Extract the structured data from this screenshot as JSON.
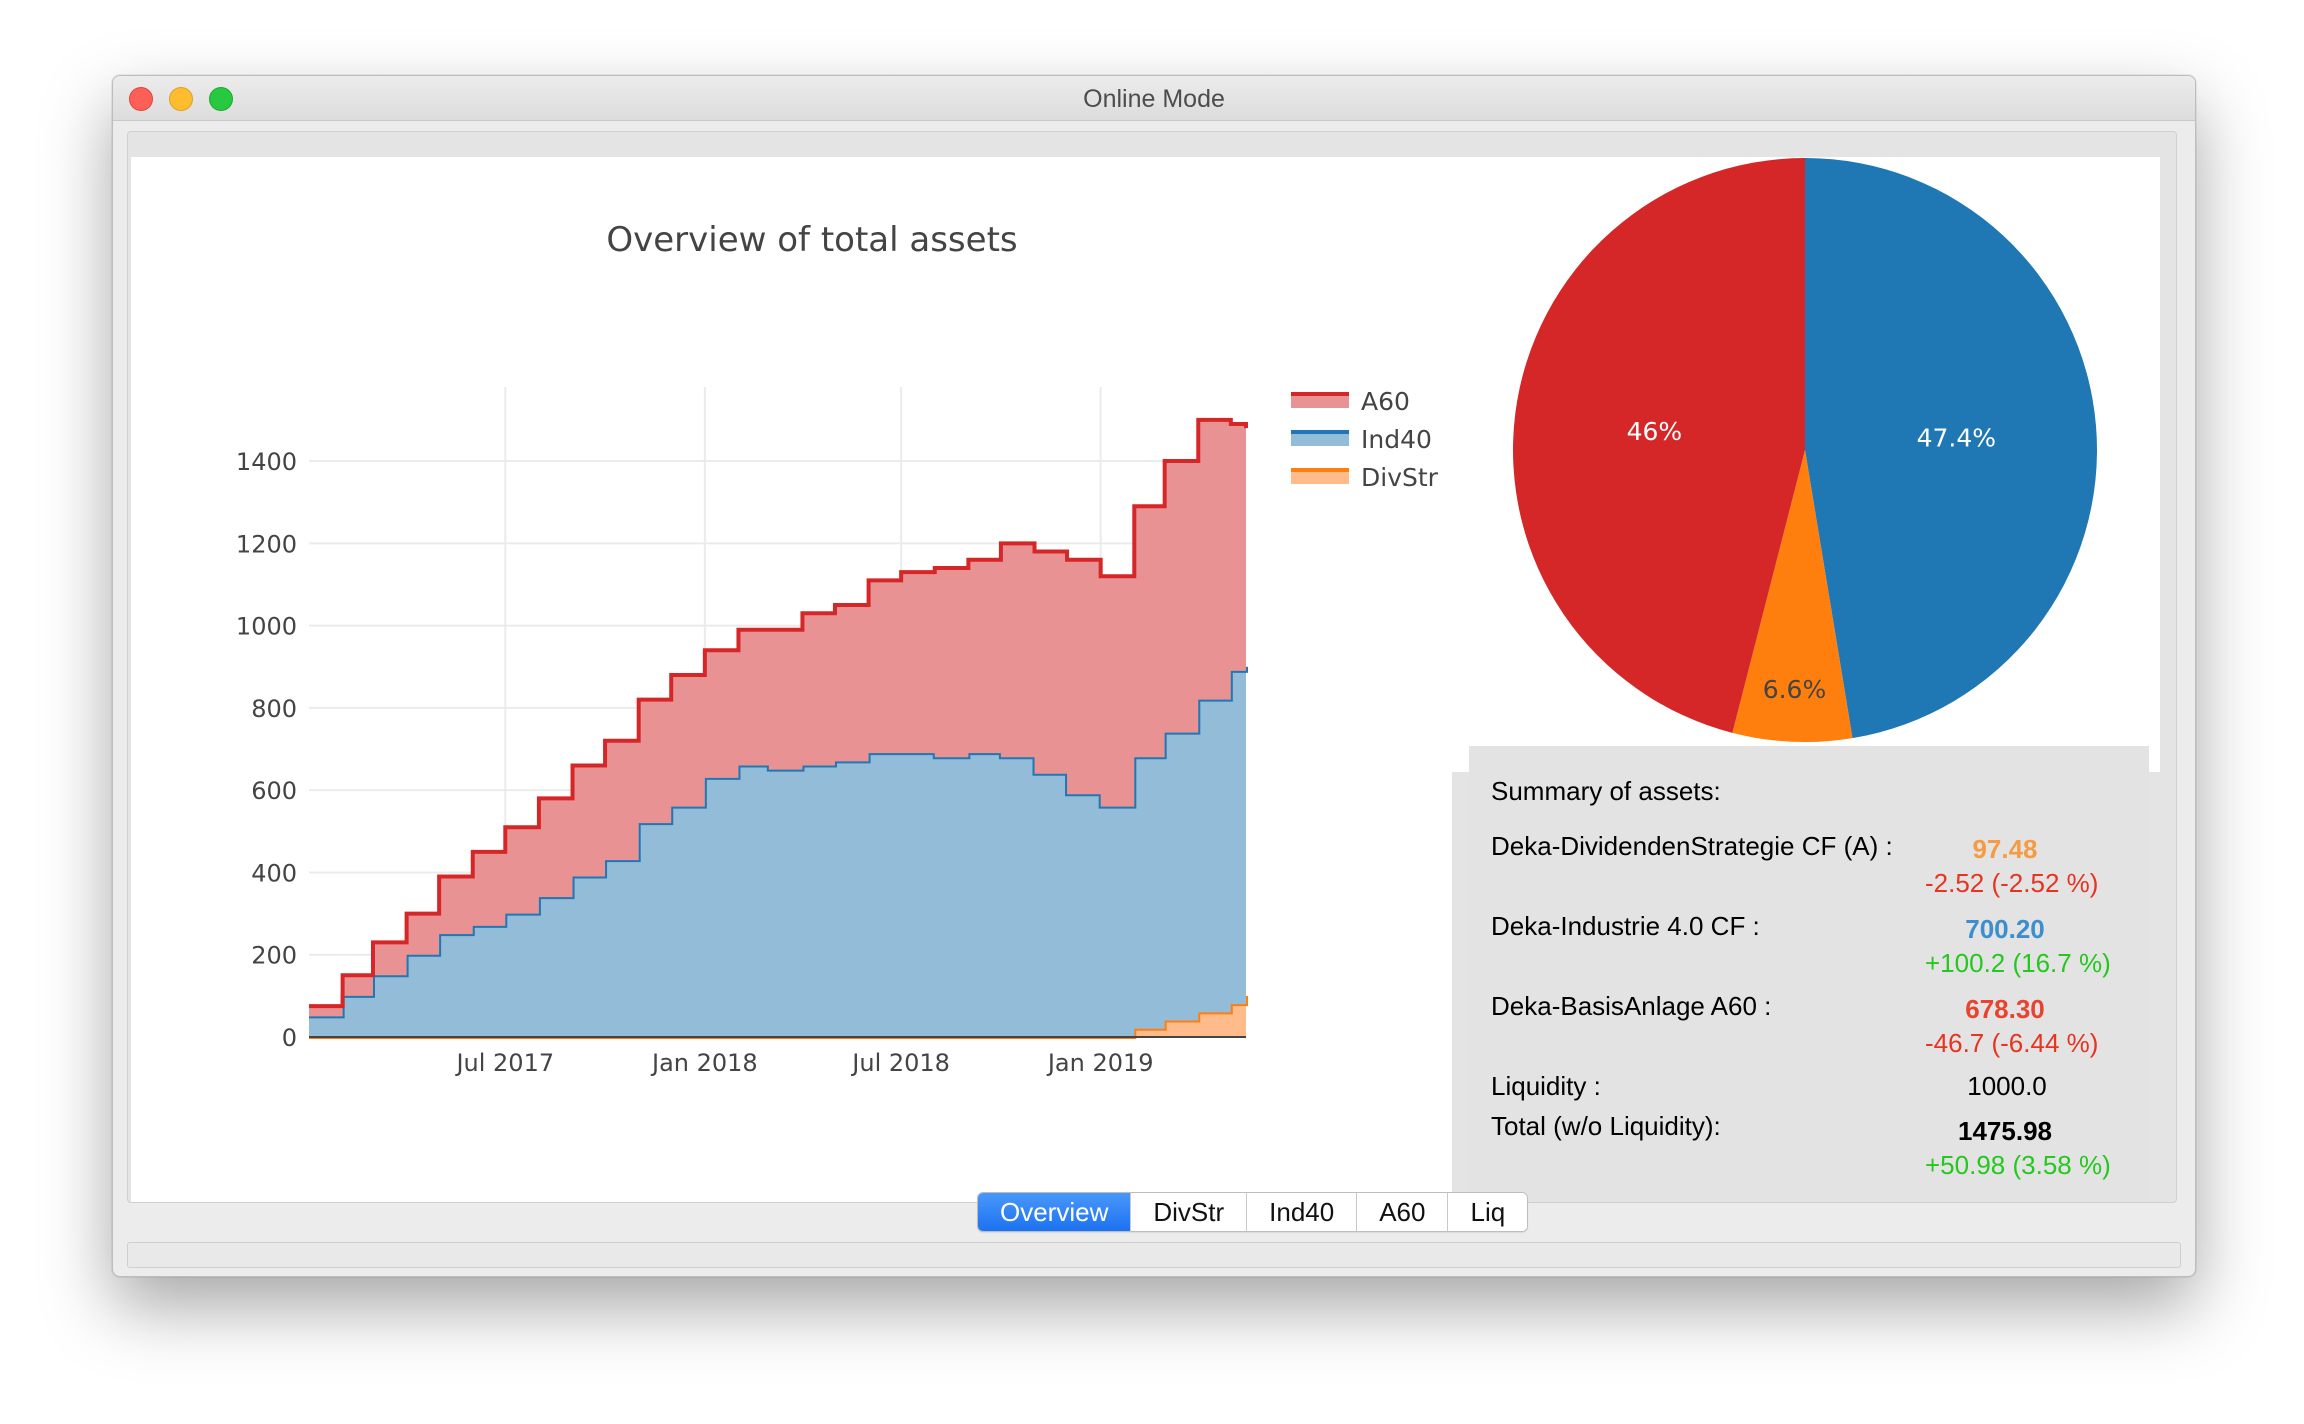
{
  "window": {
    "title": "Online Mode"
  },
  "tabs": [
    {
      "label": "Overview",
      "active": true
    },
    {
      "label": "DivStr",
      "active": false
    },
    {
      "label": "Ind40",
      "active": false
    },
    {
      "label": "A60",
      "active": false
    },
    {
      "label": "Liq",
      "active": false
    }
  ],
  "chart_data": [
    {
      "type": "area",
      "stacked": true,
      "title": "Overview of total assets",
      "xlabel": "",
      "ylabel": "",
      "x_ticks": [
        "Jul 2017",
        "Jan 2018",
        "Jul 2018",
        "Jan 2019"
      ],
      "y_ticks": [
        0,
        200,
        400,
        600,
        800,
        1000,
        1200,
        1400
      ],
      "ylim": [
        0,
        1580
      ],
      "xlim": [
        "2017-01-01",
        "2019-05-15"
      ],
      "grid": true,
      "legend_position": "top-right",
      "x": [
        "2017-01-01",
        "2017-02-01",
        "2017-03-01",
        "2017-04-01",
        "2017-05-01",
        "2017-06-01",
        "2017-07-01",
        "2017-08-01",
        "2017-09-01",
        "2017-10-01",
        "2017-11-01",
        "2017-12-01",
        "2018-01-01",
        "2018-02-01",
        "2018-03-01",
        "2018-04-01",
        "2018-05-01",
        "2018-06-01",
        "2018-07-01",
        "2018-08-01",
        "2018-09-01",
        "2018-10-01",
        "2018-11-01",
        "2018-12-01",
        "2019-01-01",
        "2019-02-01",
        "2019-03-01",
        "2019-04-01",
        "2019-05-01",
        "2019-05-15"
      ],
      "series": [
        {
          "name": "DivStr",
          "color": "#ff7f0e",
          "values": [
            0,
            0,
            0,
            0,
            0,
            0,
            0,
            0,
            0,
            0,
            0,
            0,
            0,
            0,
            0,
            0,
            0,
            0,
            0,
            0,
            0,
            0,
            0,
            0,
            0,
            20,
            40,
            60,
            80,
            100
          ]
        },
        {
          "name": "Ind40",
          "color": "#1f77b4",
          "values": [
            50,
            100,
            150,
            200,
            250,
            270,
            300,
            340,
            390,
            430,
            520,
            560,
            630,
            660,
            650,
            660,
            670,
            690,
            690,
            680,
            690,
            680,
            640,
            590,
            560,
            660,
            700,
            760,
            810,
            800
          ]
        },
        {
          "name": "A60",
          "color": "#d62728",
          "values": [
            25,
            50,
            80,
            100,
            140,
            180,
            210,
            240,
            270,
            290,
            300,
            320,
            310,
            330,
            340,
            370,
            380,
            420,
            440,
            460,
            470,
            520,
            540,
            570,
            560,
            610,
            660,
            680,
            600,
            580
          ]
        }
      ]
    },
    {
      "type": "pie",
      "labels": [
        "Ind40",
        "DivStr",
        "A60"
      ],
      "values": [
        47.4,
        6.6,
        46.0
      ],
      "slice_labels": [
        "47.4%",
        "6.6%",
        "46%"
      ],
      "colors": [
        "#1f77b4",
        "#ff7f0e",
        "#d62728"
      ]
    }
  ],
  "summary": {
    "heading": "Summary of assets:",
    "rows": [
      {
        "label": "Deka-DividendenStrategie CF (A) :",
        "value": "97.48",
        "value_color": "#f59b42",
        "change": "-2.52 (-2.52 %)",
        "change_color": "#e8331f"
      },
      {
        "label": "Deka-Industrie 4.0 CF :",
        "value": "700.20",
        "value_color": "#3b8fd0",
        "change": "+100.2 (16.7 %)",
        "change_color": "#25c81e"
      },
      {
        "label": "Deka-BasisAnlage A60 :",
        "value": "678.30",
        "value_color": "#e8432f",
        "change": "-46.7 (-6.44 %)",
        "change_color": "#e8331f"
      }
    ],
    "liquidity_label": "Liquidity :",
    "liquidity_value": "1000.0",
    "total_label": "Total (w/o Liquidity):",
    "total_value": "1475.98",
    "total_change": "+50.98 (3.58 %)",
    "total_change_color": "#25c81e"
  }
}
